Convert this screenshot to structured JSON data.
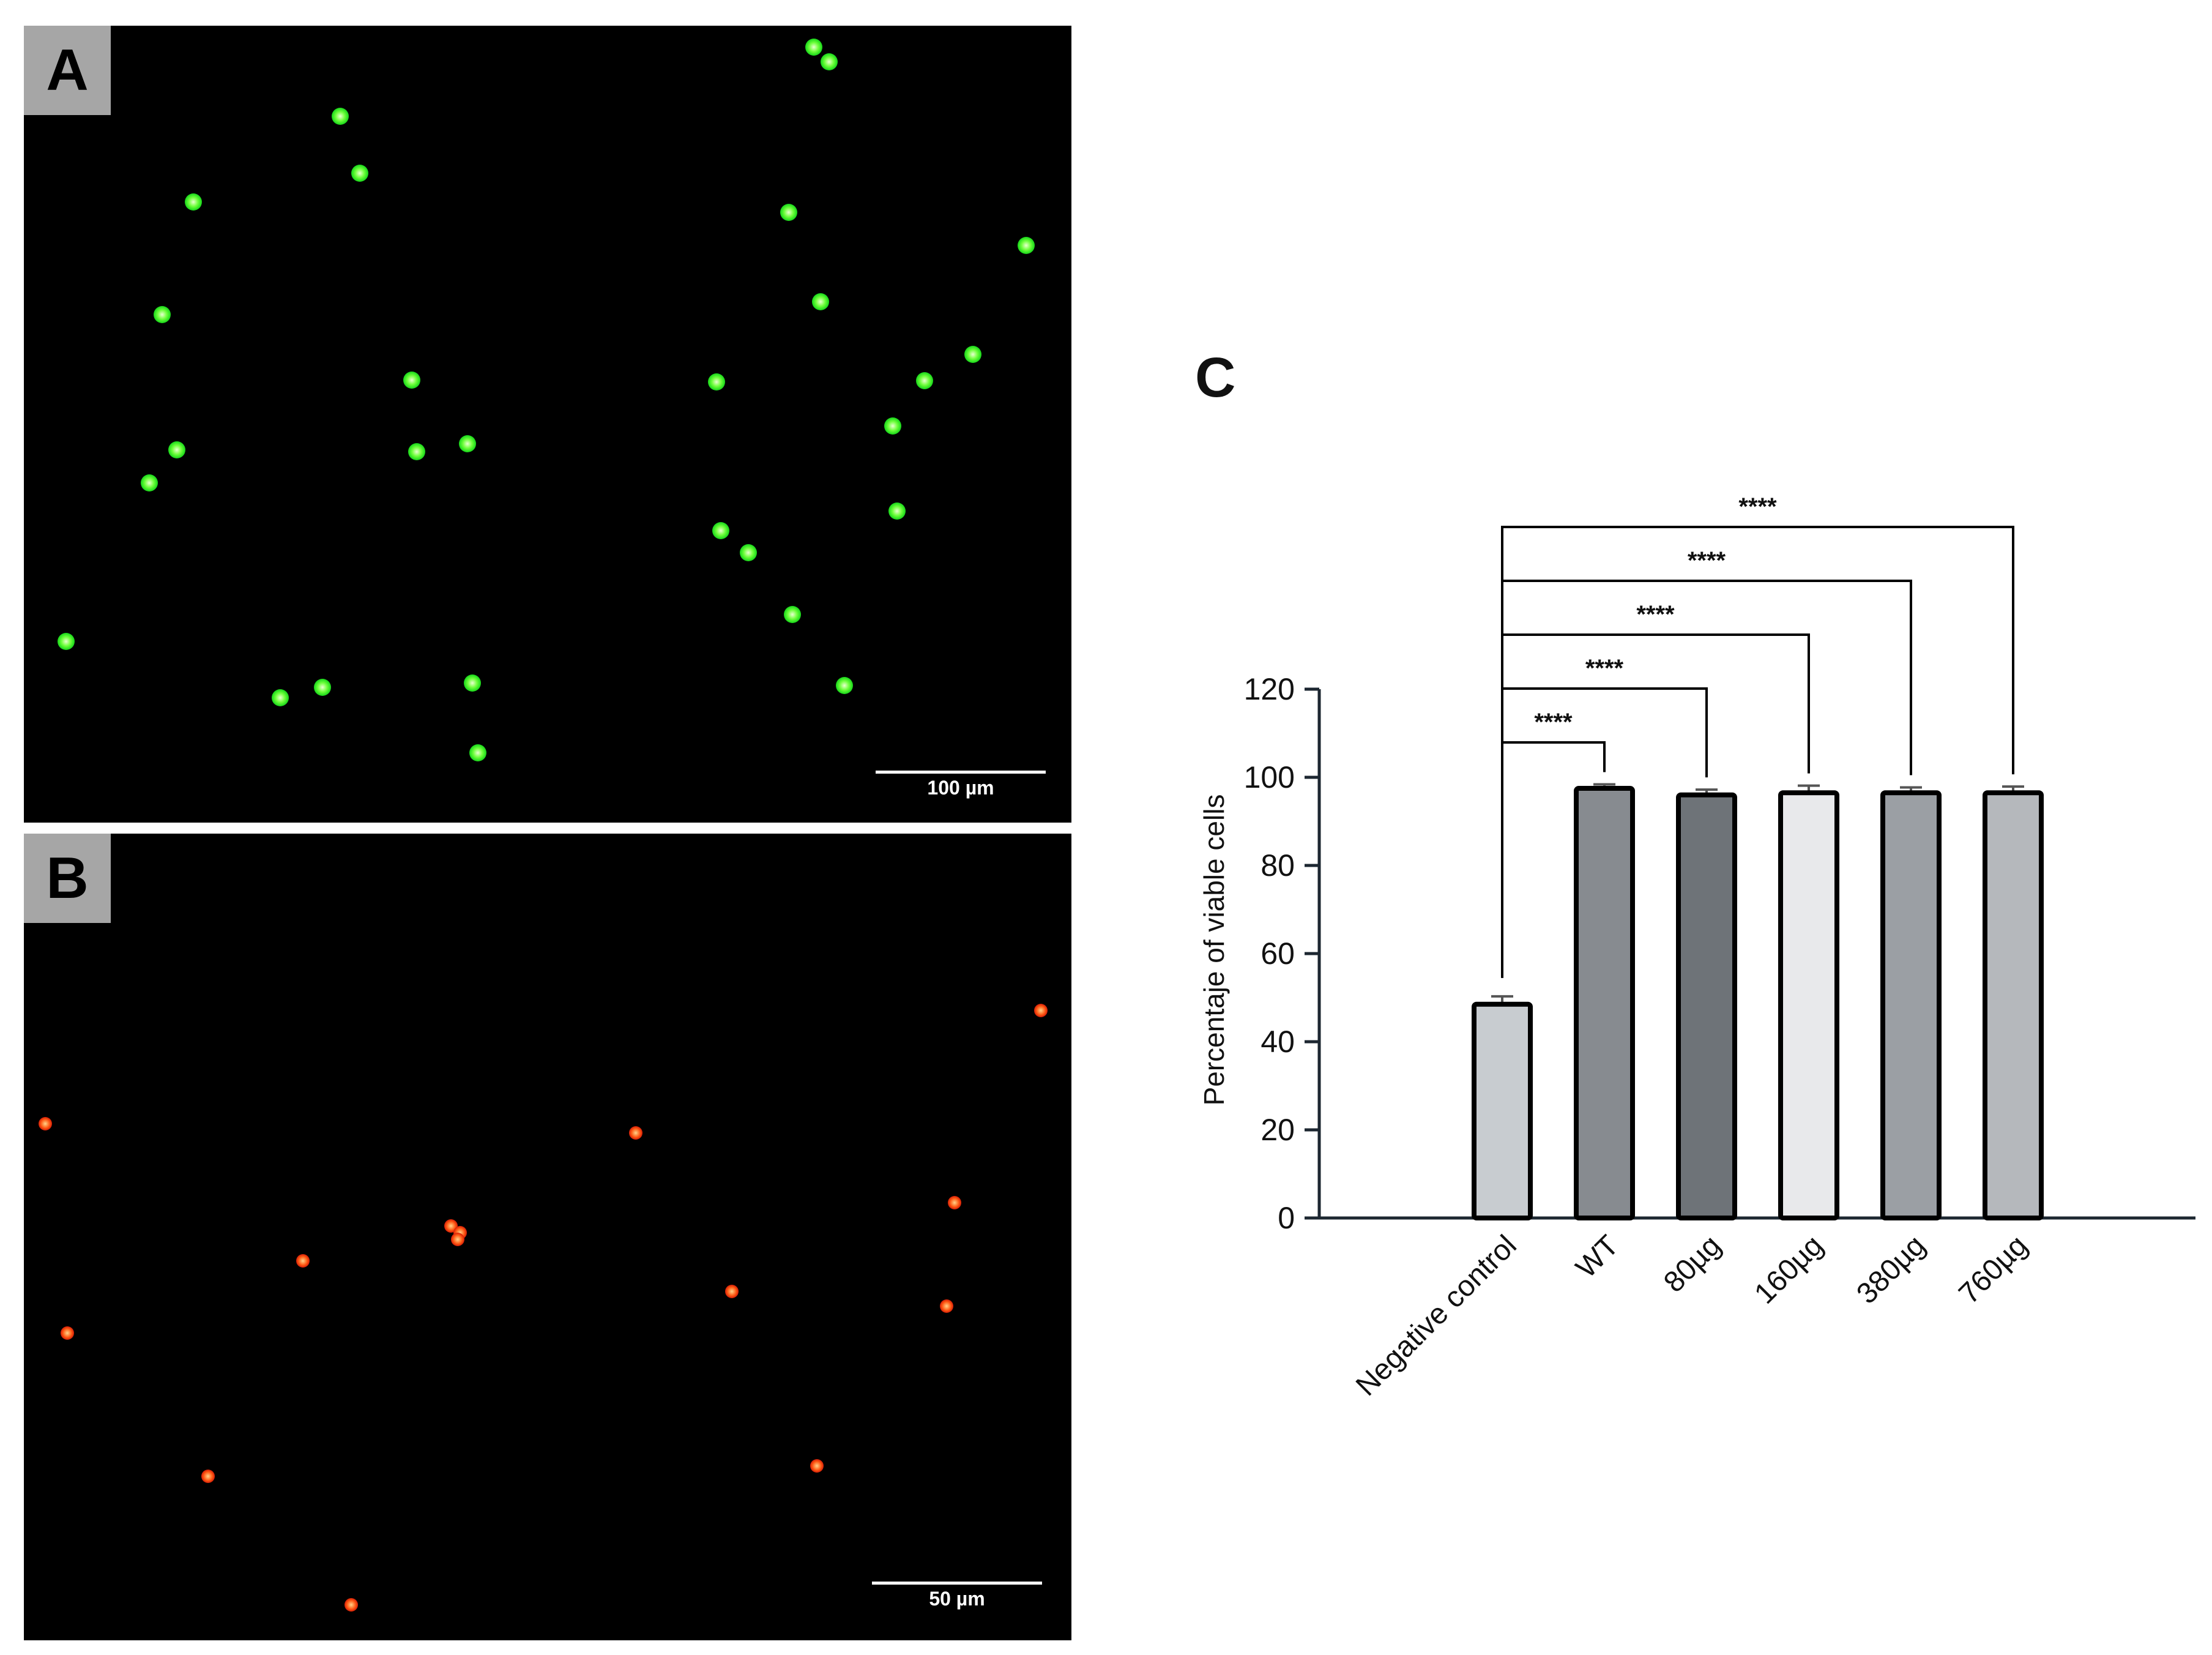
{
  "panels": {
    "a": {
      "letter": "A",
      "scale_label": "100 µm",
      "cells": [
        [
          1330,
          77
        ],
        [
          1355,
          101
        ],
        [
          556,
          190
        ],
        [
          588,
          283
        ],
        [
          316,
          330
        ],
        [
          1289,
          347
        ],
        [
          1677,
          401
        ],
        [
          1341,
          493
        ],
        [
          265,
          514
        ],
        [
          1590,
          579
        ],
        [
          673,
          621
        ],
        [
          1171,
          624
        ],
        [
          1511,
          622
        ],
        [
          1459,
          696
        ],
        [
          289,
          735
        ],
        [
          764,
          725
        ],
        [
          681,
          738
        ],
        [
          244,
          789
        ],
        [
          1466,
          835
        ],
        [
          1178,
          867
        ],
        [
          1223,
          903
        ],
        [
          1295,
          1004
        ],
        [
          108,
          1048
        ],
        [
          1380,
          1120
        ],
        [
          527,
          1123
        ],
        [
          458,
          1140
        ],
        [
          772,
          1116
        ],
        [
          781,
          1230
        ]
      ]
    },
    "b": {
      "letter": "B",
      "scale_label": "50 µm",
      "cells": [
        [
          1701,
          1651
        ],
        [
          74,
          1836
        ],
        [
          1039,
          1851
        ],
        [
          1560,
          1965
        ],
        [
          737,
          2003
        ],
        [
          752,
          2014
        ],
        [
          748,
          2025
        ],
        [
          495,
          2060
        ],
        [
          1196,
          2110
        ],
        [
          110,
          2178
        ],
        [
          1547,
          2134
        ],
        [
          1335,
          2395
        ],
        [
          340,
          2412
        ],
        [
          574,
          2622
        ]
      ]
    }
  },
  "chart_data": {
    "type": "bar",
    "panel_label": "C",
    "categories": [
      "Negative control",
      "WT",
      "80µg",
      "160µg",
      "380µg",
      "760µg"
    ],
    "values": [
      48.5,
      97.5,
      96.0,
      96.5,
      96.5,
      96.5
    ],
    "errors": [
      1.8,
      0.9,
      1.2,
      1.6,
      1.2,
      1.4
    ],
    "bar_colors": [
      "#c8ccd0",
      "#878b90",
      "#6e7378",
      "#e8e9eb",
      "#9b9fa4",
      "#b5b8bc"
    ],
    "ylabel": "Percentaje of viable cells",
    "xlabel": "",
    "ylim": [
      0,
      120
    ],
    "yticks": [
      0,
      20,
      40,
      60,
      80,
      100,
      120
    ],
    "grid": false,
    "significance": [
      {
        "from": 0,
        "to": 1,
        "label": "****"
      },
      {
        "from": 0,
        "to": 2,
        "label": "****"
      },
      {
        "from": 0,
        "to": 3,
        "label": "****"
      },
      {
        "from": 0,
        "to": 4,
        "label": "****"
      },
      {
        "from": 0,
        "to": 5,
        "label": "****"
      }
    ]
  }
}
